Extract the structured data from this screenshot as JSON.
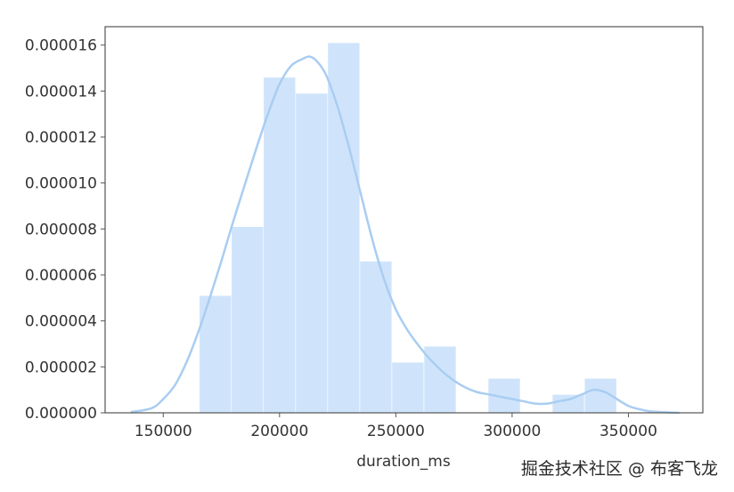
{
  "chart_data": {
    "type": "histogram",
    "xlabel": "duration_ms",
    "ylabel": "",
    "xlim": [
      125000,
      382000
    ],
    "ylim": [
      0,
      1.68e-05
    ],
    "xticks": [
      150000,
      200000,
      250000,
      300000,
      350000
    ],
    "xtick_labels": [
      "150000",
      "200000",
      "250000",
      "300000",
      "350000"
    ],
    "yticks": [
      0,
      2e-06,
      4e-06,
      6e-06,
      8e-06,
      1e-05,
      1.2e-05,
      1.4e-05,
      1.6e-05
    ],
    "ytick_labels": [
      "0.000000",
      "0.000002",
      "0.000004",
      "0.000006",
      "0.000008",
      "0.000010",
      "0.000012",
      "0.000014",
      "0.000016"
    ],
    "grid": false,
    "colors": {
      "bar_fill": "#cfe4fb",
      "kde_line": "#a9cdf2",
      "axis": "#555555"
    },
    "bins": [
      {
        "x0": 165500,
        "x1": 179300,
        "density": 5.1e-06
      },
      {
        "x0": 179300,
        "x1": 193100,
        "density": 8.1e-06
      },
      {
        "x0": 193100,
        "x1": 206900,
        "density": 1.46e-05
      },
      {
        "x0": 206900,
        "x1": 220700,
        "density": 1.39e-05
      },
      {
        "x0": 220700,
        "x1": 234500,
        "density": 1.61e-05
      },
      {
        "x0": 234500,
        "x1": 248300,
        "density": 6.6e-06
      },
      {
        "x0": 248300,
        "x1": 262100,
        "density": 2.2e-06
      },
      {
        "x0": 262100,
        "x1": 275900,
        "density": 2.9e-06
      },
      {
        "x0": 275900,
        "x1": 289700,
        "density": 0
      },
      {
        "x0": 289700,
        "x1": 303500,
        "density": 1.5e-06
      },
      {
        "x0": 303500,
        "x1": 317300,
        "density": 0
      },
      {
        "x0": 317300,
        "x1": 331100,
        "density": 8e-07
      },
      {
        "x0": 331100,
        "x1": 344900,
        "density": 1.5e-06
      }
    ],
    "kde": {
      "x": [
        136000,
        145000,
        150000,
        155000,
        160000,
        165000,
        170000,
        175000,
        180000,
        185000,
        190000,
        195000,
        200000,
        205000,
        210000,
        213000,
        216000,
        220000,
        225000,
        230000,
        235000,
        240000,
        245000,
        250000,
        255000,
        260000,
        265000,
        270000,
        275000,
        280000,
        285000,
        290000,
        295000,
        300000,
        305000,
        310000,
        315000,
        320000,
        325000,
        330000,
        335000,
        340000,
        345000,
        350000,
        355000,
        360000,
        372000
      ],
      "y": [
        3e-08,
        2e-07,
        6e-07,
        1.2e-06,
        2.2e-06,
        3.5e-06,
        5e-06,
        6.6e-06,
        8.3e-06,
        9.9e-06,
        1.15e-05,
        1.3e-05,
        1.43e-05,
        1.51e-05,
        1.54e-05,
        1.55e-05,
        1.53e-05,
        1.47e-05,
        1.33e-05,
        1.15e-05,
        9.5e-06,
        7.5e-06,
        5.8e-06,
        4.5e-06,
        3.6e-06,
        2.9e-06,
        2.3e-06,
        1.8e-06,
        1.4e-06,
        1.1e-06,
        9e-07,
        8e-07,
        7e-07,
        6e-07,
        5e-07,
        4e-07,
        4e-07,
        5e-07,
        6e-07,
        8e-07,
        1e-06,
        9e-07,
        6e-07,
        3e-07,
        1.5e-07,
        6e-08,
        0.0
      ]
    }
  },
  "watermark": "掘金技术社区 @ 布客飞龙"
}
